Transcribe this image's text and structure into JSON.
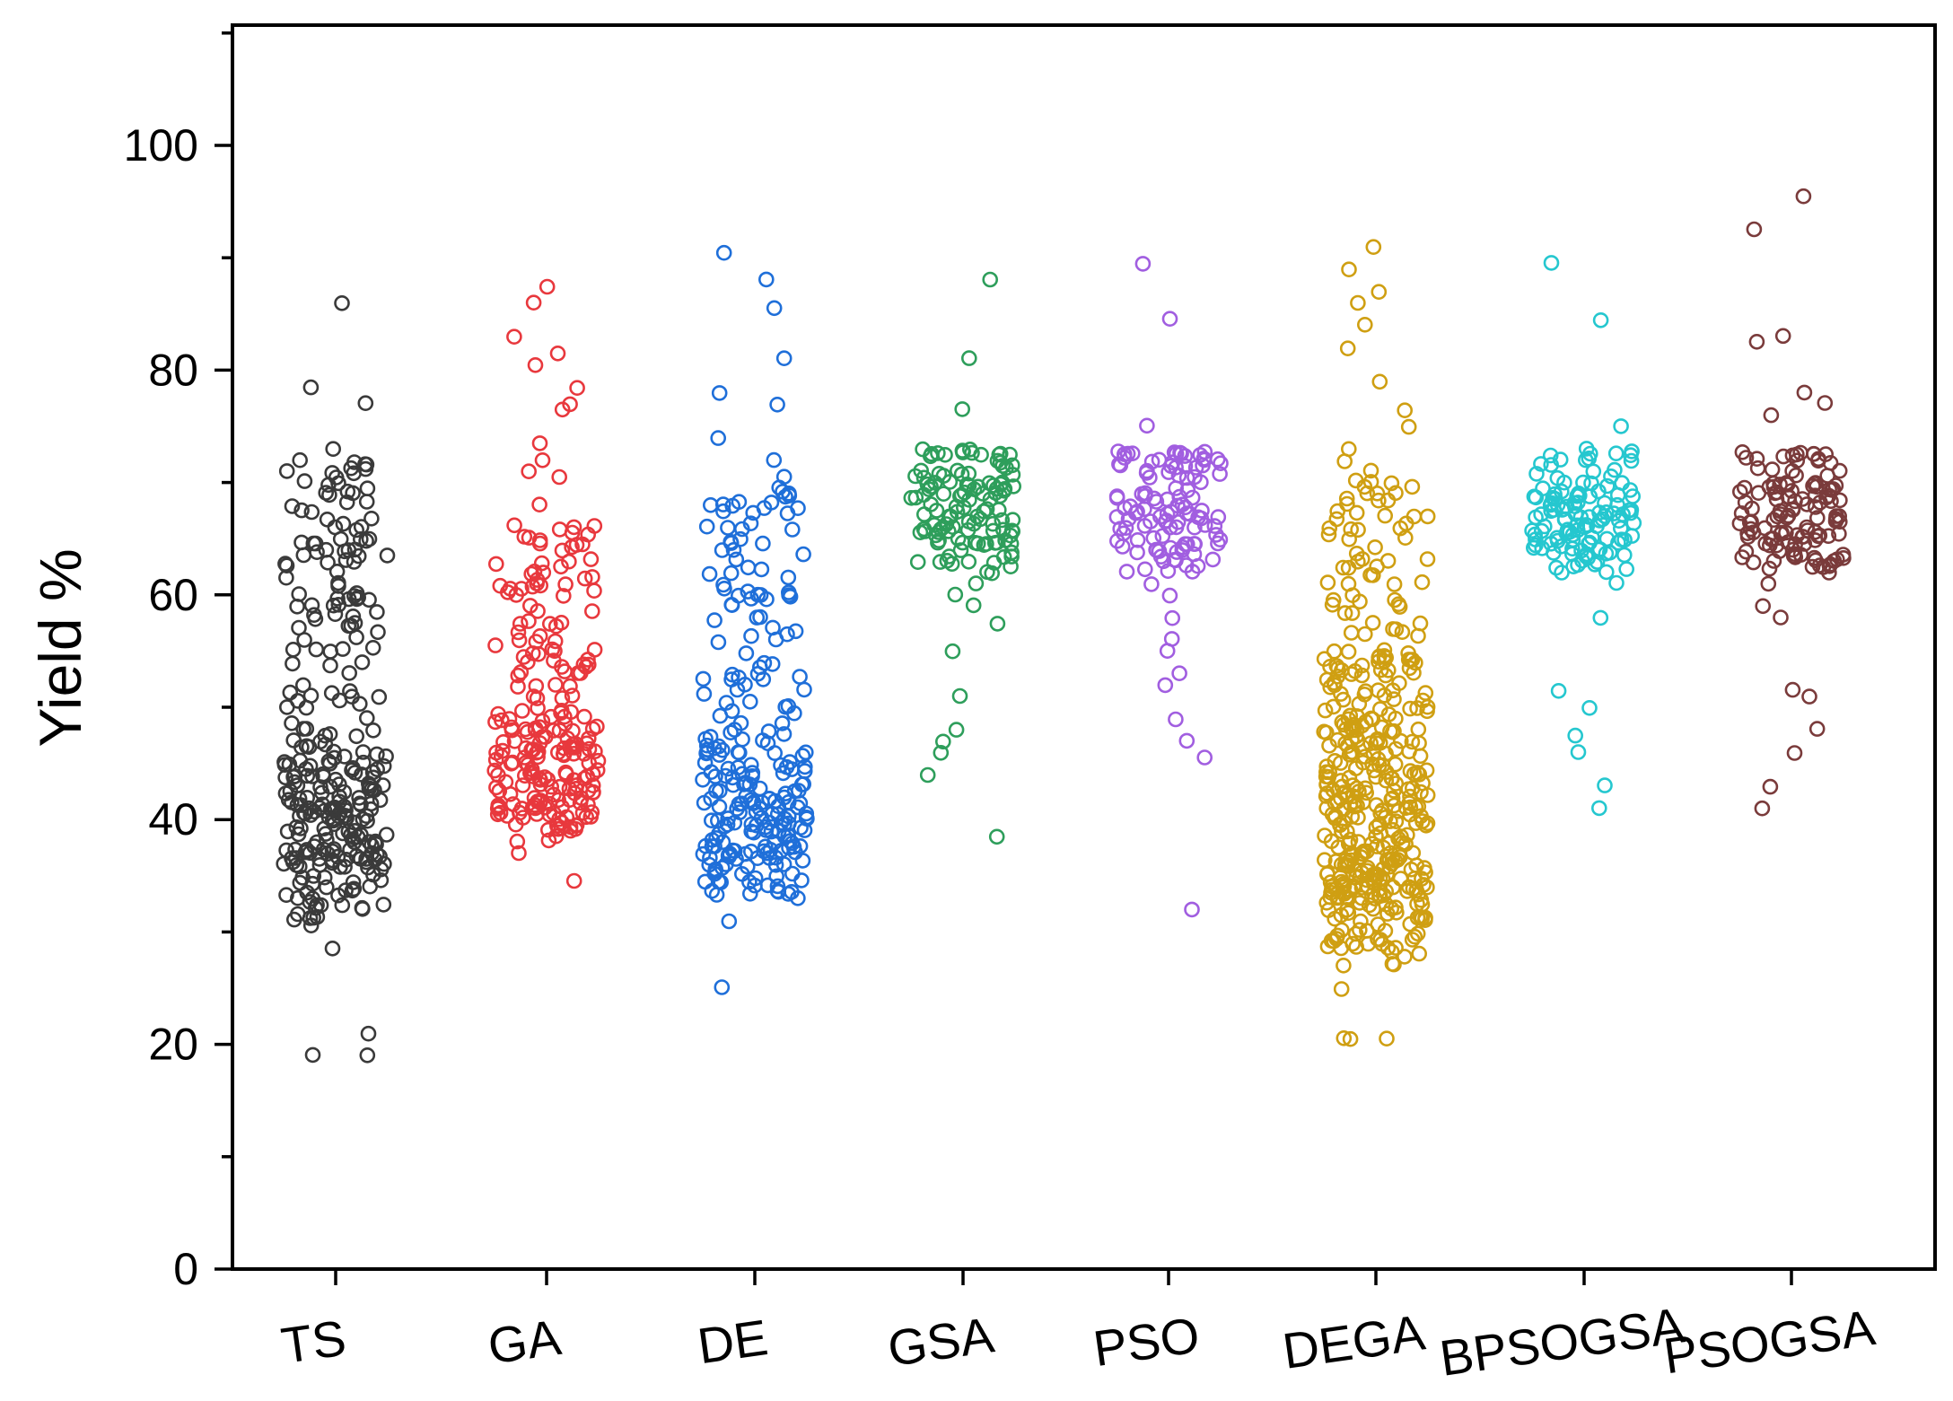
{
  "chart_data": {
    "type": "scatter",
    "title": "",
    "xlabel": "",
    "ylabel": "Yield %",
    "ylim": [
      0,
      110
    ],
    "yticks": [
      0,
      20,
      40,
      60,
      80,
      100
    ],
    "grid": false,
    "legend": "none",
    "categories": [
      "TS",
      "GA",
      "DE",
      "GSA",
      "PSO",
      "DEGA",
      "BPSOGSA",
      "PSOGSA"
    ],
    "series": [
      {
        "category": "TS",
        "color": "#3a3a3a",
        "values": [
          86.0,
          78.5,
          77.0,
          73.0,
          72.0,
          70.5,
          69.0,
          67.5,
          66.0,
          65.0,
          64.0,
          63.0,
          62.0,
          61.0,
          60.0,
          59.0,
          58.0,
          57.0,
          56.0,
          55.0,
          54.0,
          53.0,
          52.0,
          51.0,
          50.0,
          49.0,
          48.0,
          47.0,
          46.0,
          45.0,
          44.0,
          43.0,
          42.0,
          41.0,
          40.0,
          39.0,
          38.0,
          37.0,
          36.0,
          35.0,
          34.0,
          33.0,
          32.0,
          30.5,
          28.5,
          21.0,
          19.0,
          19.0
        ],
        "dense": [
          [
            31,
            72,
            0.55
          ],
          [
            32,
            46,
            1.0
          ],
          [
            36,
            42,
            0.85
          ]
        ]
      },
      {
        "category": "GA",
        "color": "#e8383d",
        "values": [
          87.5,
          86.0,
          83.0,
          81.5,
          80.5,
          78.5,
          77.0,
          76.5,
          73.5,
          72.0,
          71.0,
          70.5,
          68.0,
          66.0,
          64.5,
          63.0,
          62.0,
          60.5,
          59.0,
          57.5,
          56.0,
          55.0,
          54.0,
          53.0,
          52.0,
          51.0,
          50.0,
          49.0,
          48.0,
          47.0,
          46.0,
          45.0,
          44.0,
          43.0,
          42.0,
          41.0,
          40.0,
          39.0,
          38.0,
          37.0,
          34.5
        ],
        "dense": [
          [
            38,
            67,
            0.6
          ],
          [
            39,
            50,
            0.9
          ],
          [
            41,
            48,
            0.8
          ]
        ]
      },
      {
        "category": "DE",
        "color": "#1f6fd9",
        "values": [
          90.5,
          88.0,
          85.5,
          81.0,
          78.0,
          77.0,
          74.0,
          72.0,
          70.5,
          69.0,
          68.0,
          66.0,
          64.0,
          62.0,
          60.0,
          58.0,
          56.0,
          54.0,
          52.0,
          50.0,
          48.0,
          46.0,
          44.0,
          42.0,
          40.0,
          39.0,
          38.0,
          37.0,
          36.0,
          35.0,
          34.0,
          33.5,
          31.0,
          25.0
        ],
        "dense": [
          [
            33,
            70,
            0.55
          ],
          [
            34,
            48,
            0.85
          ],
          [
            36,
            42,
            0.9
          ]
        ]
      },
      {
        "category": "GSA",
        "color": "#2e9e5b",
        "values": [
          88.0,
          81.0,
          76.5,
          73.0,
          72.5,
          72.0,
          70.0,
          69.0,
          68.0,
          67.0,
          66.0,
          65.0,
          64.0,
          63.0,
          62.0,
          61.0,
          60.0,
          59.0,
          57.5,
          55.0,
          51.0,
          48.0,
          47.0,
          46.0,
          44.0,
          38.5
        ],
        "dense": [
          [
            62,
            73,
            1.0
          ],
          [
            64,
            70,
            1.0
          ],
          [
            72,
            72.8,
            0.9
          ]
        ]
      },
      {
        "category": "PSO",
        "color": "#a15ee0",
        "values": [
          89.5,
          84.5,
          75.0,
          72.5,
          72.0,
          70.0,
          69.0,
          68.0,
          67.0,
          66.0,
          65.0,
          64.0,
          63.0,
          62.0,
          61.0,
          60.0,
          58.0,
          56.0,
          55.0,
          53.0,
          52.0,
          49.0,
          47.0,
          45.5,
          32.0
        ],
        "dense": [
          [
            62,
            73,
            1.0
          ],
          [
            64,
            69,
            1.0
          ],
          [
            72,
            72.8,
            0.9
          ]
        ]
      },
      {
        "category": "DEGA",
        "color": "#cf9f12",
        "values": [
          91.0,
          89.0,
          87.0,
          86.0,
          84.0,
          82.0,
          79.0,
          76.5,
          75.0,
          73.0,
          71.0,
          69.0,
          67.0,
          65.0,
          63.0,
          61.0,
          59.0,
          57.0,
          55.0,
          53.0,
          51.0,
          49.0,
          47.0,
          45.0,
          43.0,
          41.0,
          39.0,
          37.0,
          35.0,
          33.0,
          31.0,
          29.0,
          27.0,
          25.0,
          20.5,
          20.5,
          20.5
        ],
        "dense": [
          [
            27,
            72,
            0.55
          ],
          [
            28,
            55,
            1.0
          ],
          [
            32,
            45,
            0.9
          ],
          [
            33,
            35,
            1.0
          ]
        ]
      },
      {
        "category": "BPSOGSA",
        "color": "#25c7cf",
        "values": [
          89.5,
          84.5,
          75.0,
          72.5,
          72.0,
          70.0,
          69.0,
          68.0,
          67.0,
          66.0,
          65.0,
          64.0,
          63.0,
          62.0,
          61.0,
          58.0,
          51.5,
          50.0,
          47.5,
          46.0,
          43.0,
          41.0
        ],
        "dense": [
          [
            62,
            73,
            1.0
          ],
          [
            63,
            70,
            1.0
          ],
          [
            72,
            72.8,
            0.9
          ]
        ]
      },
      {
        "category": "PSOGSA",
        "color": "#7a3b3b",
        "values": [
          95.5,
          92.5,
          83.0,
          82.5,
          78.0,
          77.0,
          76.0,
          72.5,
          72.0,
          70.0,
          69.0,
          68.0,
          67.0,
          66.0,
          65.0,
          64.0,
          63.0,
          62.0,
          61.0,
          59.0,
          58.0,
          51.5,
          51.0,
          48.0,
          46.0,
          43.0,
          41.0
        ],
        "dense": [
          [
            62,
            73,
            1.0
          ],
          [
            63,
            70,
            1.0
          ],
          [
            72,
            72.8,
            0.9
          ]
        ]
      }
    ]
  }
}
